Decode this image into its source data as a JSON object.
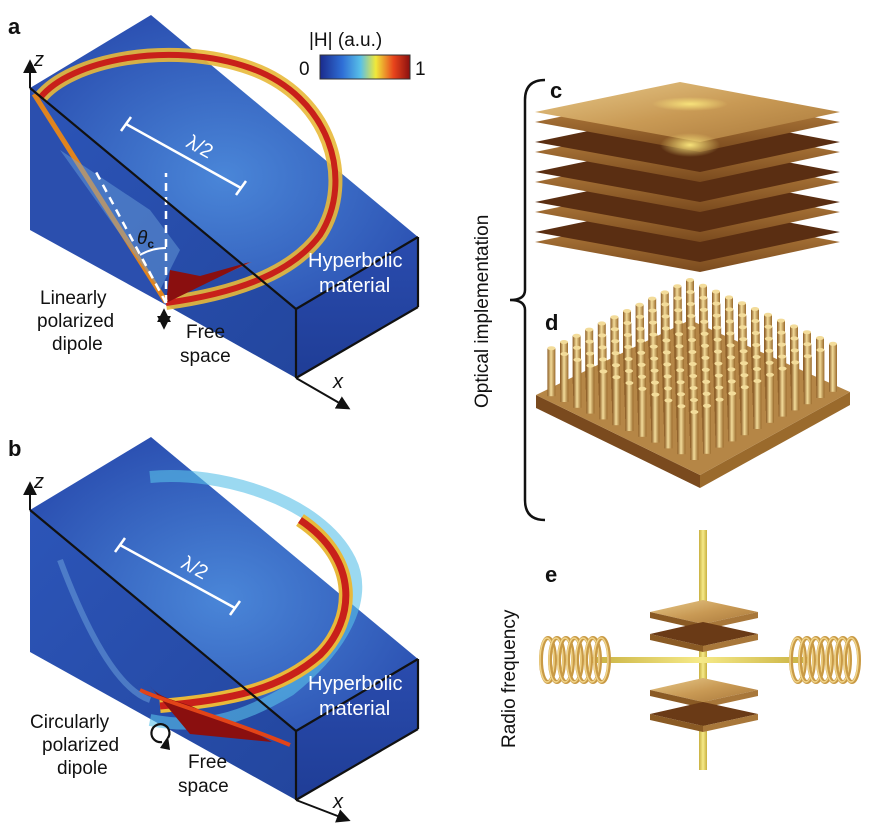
{
  "panels": {
    "a": {
      "letter": "a",
      "axis_z": "z",
      "axis_x": "x",
      "wavelength_label": "λ/2",
      "angle_label": "θ",
      "angle_subscript": "c",
      "material_line1": "Hyperbolic",
      "material_line2": "material",
      "dipole_line1": "Linearly",
      "dipole_line2": "polarized",
      "dipole_line3": "dipole",
      "space_line1": "Free",
      "space_line2": "space"
    },
    "b": {
      "letter": "b",
      "axis_z": "z",
      "axis_x": "x",
      "wavelength_label": "λ/2",
      "material_line1": "Hyperbolic",
      "material_line2": "material",
      "dipole_line1": "Circularly",
      "dipole_line2": "polarized",
      "dipole_line3": "dipole",
      "space_line1": "Free",
      "space_line2": "space"
    },
    "c": {
      "letter": "c"
    },
    "d": {
      "letter": "d"
    },
    "e": {
      "letter": "e"
    }
  },
  "colorbar": {
    "title": "|H| (a.u.)",
    "min_label": "0",
    "max_label": "1",
    "colors": [
      "#1a2a8c",
      "#2f6fd6",
      "#58c0e8",
      "#f0e83a",
      "#e8431c",
      "#8a0f0f"
    ]
  },
  "side_labels": {
    "optical": "Optical implementation",
    "radio": "Radio frequency"
  },
  "colors": {
    "field_bg": "#2a4eb0",
    "field_dark": "#1c348a",
    "gold": "#c9a25a",
    "gold_dark": "#7a4a1e"
  }
}
